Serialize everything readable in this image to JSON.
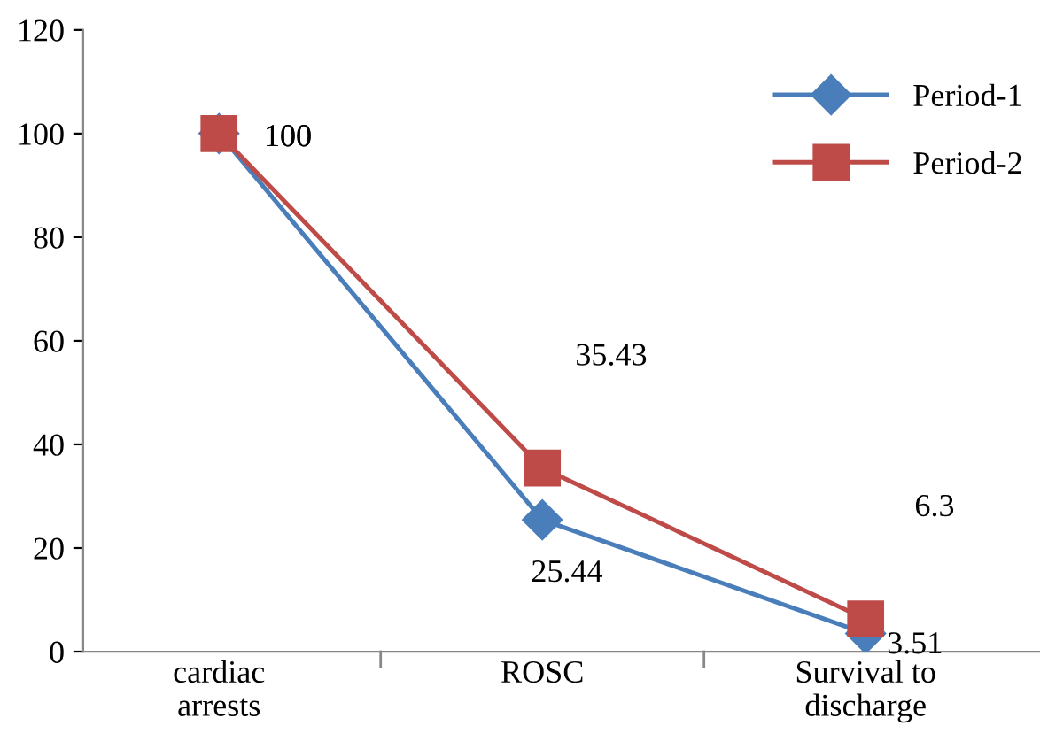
{
  "chart_data": {
    "type": "line",
    "categories": [
      "cardiac\narrests",
      "ROSC",
      "Survival to\ndischarge"
    ],
    "series": [
      {
        "name": "Period-1",
        "color": "#4a7ebb",
        "marker": "diamond",
        "values": [
          100,
          25.44,
          3.51
        ],
        "value_labels": [
          "100",
          "25.44",
          "3.51"
        ]
      },
      {
        "name": "Period-2",
        "color": "#be4b48",
        "marker": "square",
        "values": [
          100,
          35.43,
          6.3
        ],
        "value_labels": [
          "100",
          "35.43",
          "6.3"
        ]
      }
    ],
    "ylim": [
      0,
      120
    ],
    "yticks": [
      0,
      20,
      40,
      60,
      80,
      100,
      120
    ],
    "grid": false,
    "legend": "top right"
  }
}
